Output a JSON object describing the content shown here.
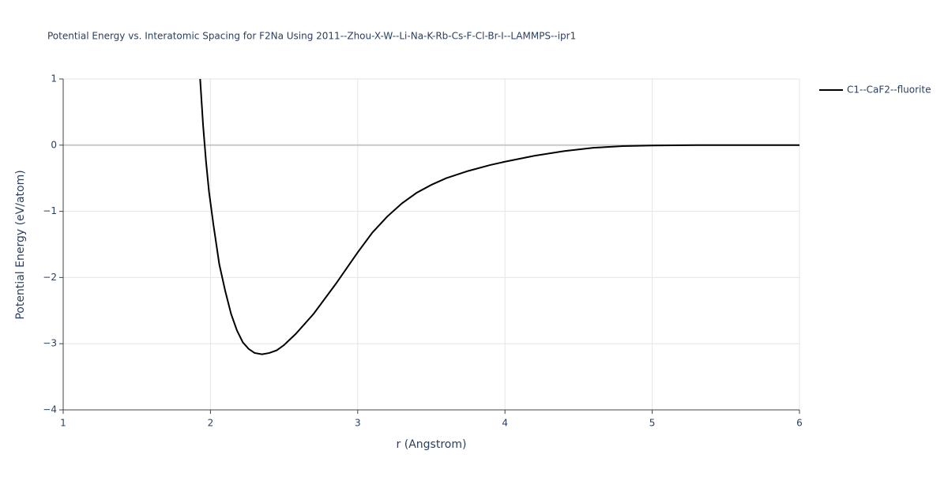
{
  "chart_data": {
    "type": "line",
    "title": "Potential Energy vs. Interatomic Spacing for F2Na Using 2011--Zhou-X-W--Li-Na-K-Rb-Cs-F-Cl-Br-I--LAMMPS--ipr1",
    "x_label": "r (Angstrom)",
    "y_label": "Potential Energy (eV/atom)",
    "x": [
      1.93,
      1.95,
      1.97,
      1.99,
      2.02,
      2.06,
      2.1,
      2.14,
      2.18,
      2.22,
      2.26,
      2.3,
      2.35,
      2.4,
      2.45,
      2.5,
      2.58,
      2.7,
      2.85,
      3.0,
      3.1,
      3.2,
      3.3,
      3.4,
      3.5,
      3.6,
      3.75,
      3.9,
      4.0,
      4.2,
      4.4,
      4.6,
      4.8,
      5.0,
      5.3,
      6.0
    ],
    "series": [
      {
        "name": "C1--CaF2--fluorite",
        "color": "#000000",
        "values": [
          1.0,
          0.3,
          -0.25,
          -0.7,
          -1.2,
          -1.8,
          -2.2,
          -2.55,
          -2.8,
          -2.98,
          -3.08,
          -3.14,
          -3.16,
          -3.14,
          -3.1,
          -3.02,
          -2.85,
          -2.55,
          -2.1,
          -1.62,
          -1.32,
          -1.08,
          -0.88,
          -0.72,
          -0.6,
          -0.5,
          -0.39,
          -0.3,
          -0.25,
          -0.16,
          -0.09,
          -0.04,
          -0.015,
          -0.005,
          0,
          0
        ]
      }
    ],
    "xlim": [
      1,
      6
    ],
    "xticks": [
      1,
      2,
      3,
      4,
      5,
      6
    ],
    "ylim": [
      -4,
      1
    ],
    "yticks": [
      {
        "value": -4,
        "label": "−4"
      },
      {
        "value": -3,
        "label": "−3"
      },
      {
        "value": -2,
        "label": "−2"
      },
      {
        "value": -1,
        "label": "−1"
      },
      0,
      1
    ],
    "grid": true,
    "legend": "right"
  }
}
